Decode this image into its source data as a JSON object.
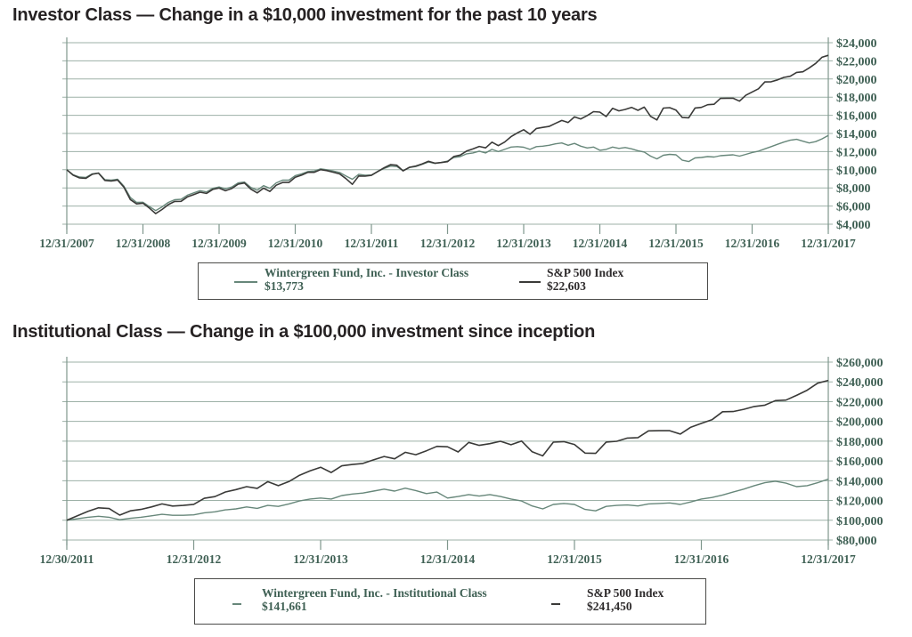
{
  "colors": {
    "fund_line": "#67877a",
    "sp_line": "#3a3a38",
    "grid": "#9db1a7",
    "axis": "#7f978d",
    "axis_text": "#3f6054",
    "title_text": "#262223",
    "legend_border": "#4a4a48"
  },
  "chart_data": [
    {
      "type": "line",
      "title": "Investor Class — Change in a $10,000 investment for the past 10 years",
      "xlabel": "",
      "ylabel": "",
      "ylim": [
        4000,
        24000
      ],
      "ytick_step": 2000,
      "ytick_labels": [
        "$24,000",
        "$22,000",
        "$20,000",
        "$18,000",
        "$16,000",
        "$14,000",
        "$12,000",
        "$10,000",
        "$8,000",
        "$6,000",
        "$4,000"
      ],
      "xtick_labels": [
        "12/31/2007",
        "12/31/2008",
        "12/31/2009",
        "12/31/2010",
        "12/31/2011",
        "12/31/2012",
        "12/31/2013",
        "12/31/2014",
        "12/31/2015",
        "12/31/2016",
        "12/31/2017"
      ],
      "grid": true,
      "legend_position": "bottom-box",
      "sampling": "monthly",
      "series": [
        {
          "name": "Wintergreen Fund, Inc. - Investor Class",
          "value_label": "$13,773",
          "color": "#67877a",
          "values": [
            10000,
            9450,
            9200,
            9150,
            9550,
            9650,
            8900,
            8850,
            8950,
            8200,
            6950,
            6400,
            6420,
            5950,
            5500,
            5900,
            6400,
            6700,
            6750,
            7200,
            7450,
            7700,
            7560,
            7950,
            8100,
            7900,
            8100,
            8550,
            8650,
            8050,
            7750,
            8250,
            7950,
            8550,
            8850,
            8850,
            9350,
            9550,
            9800,
            9850,
            10100,
            10000,
            9850,
            9700,
            9300,
            8950,
            9500,
            9400,
            9420,
            9800,
            10150,
            10400,
            10350,
            9900,
            10250,
            10350,
            10600,
            10850,
            10700,
            10800,
            10950,
            11350,
            11450,
            11750,
            11850,
            12050,
            11850,
            12250,
            12000,
            12250,
            12500,
            12550,
            12480,
            12250,
            12550,
            12600,
            12700,
            12850,
            12950,
            12700,
            12900,
            12600,
            12400,
            12500,
            12150,
            12250,
            12500,
            12350,
            12450,
            12300,
            12100,
            11950,
            11500,
            11200,
            11600,
            11700,
            11650,
            11050,
            10900,
            11300,
            11350,
            11450,
            11400,
            11550,
            11600,
            11650,
            11500,
            11700,
            11900,
            12050,
            12300,
            12550,
            12800,
            13050,
            13250,
            13350,
            13150,
            12950,
            13100,
            13400,
            13773
          ]
        },
        {
          "name": "S&P 500 Index",
          "value_label": "$22,603",
          "color": "#3a3a38",
          "values": [
            10000,
            9400,
            9100,
            9060,
            9500,
            9630,
            8820,
            8750,
            8870,
            8080,
            6720,
            6240,
            6310,
            5780,
            5170,
            5620,
            6160,
            6510,
            6520,
            7010,
            7260,
            7530,
            7390,
            7830,
            7980,
            7690,
            7930,
            8410,
            8540,
            7860,
            7450,
            7970,
            7610,
            8290,
            8600,
            8600,
            9180,
            9400,
            9720,
            9720,
            10010,
            9900,
            9730,
            9540,
            9020,
            8390,
            9310,
            9290,
            9380,
            9800,
            10220,
            10560,
            10500,
            9870,
            10270,
            10410,
            10650,
            10930,
            10730,
            10790,
            10890,
            11460,
            11620,
            12060,
            12290,
            12570,
            12410,
            13040,
            12660,
            13050,
            13650,
            14060,
            14410,
            13910,
            14550,
            14670,
            14770,
            15110,
            15430,
            15210,
            15820,
            15600,
            15970,
            16400,
            16350,
            15860,
            16760,
            16490,
            16650,
            16870,
            16550,
            16900,
            15880,
            15490,
            16790,
            16840,
            16570,
            15750,
            15730,
            16800,
            16870,
            17170,
            17220,
            17860,
            17880,
            17880,
            17560,
            18210,
            18570,
            18920,
            19680,
            19700,
            19900,
            20180,
            20300,
            20730,
            20790,
            21230,
            21720,
            22390,
            22603
          ]
        }
      ]
    },
    {
      "type": "line",
      "title": "Institutional Class — Change in a $100,000 investment since inception",
      "xlabel": "",
      "ylabel": "",
      "ylim": [
        80000,
        260000
      ],
      "ytick_step": 20000,
      "ytick_labels": [
        "$260,000",
        "$240,000",
        "$220,000",
        "$200,000",
        "$180,000",
        "$160,000",
        "$140,000",
        "$120,000",
        "$100,000",
        "$80,000"
      ],
      "xtick_labels": [
        "12/30/2011",
        "12/31/2012",
        "12/31/2013",
        "12/31/2014",
        "12/31/2015",
        "12/31/2016",
        "12/31/2017"
      ],
      "grid": true,
      "legend_position": "bottom-box",
      "sampling": "monthly",
      "series": [
        {
          "name": "Wintergreen Fund, Inc. - Institutional Class",
          "value_label": "$141,661",
          "color": "#67877a",
          "values": [
            100000,
            101500,
            103000,
            104000,
            103000,
            100500,
            102000,
            103000,
            104500,
            106000,
            105000,
            105000,
            105500,
            107500,
            108500,
            110500,
            111500,
            113500,
            112000,
            115000,
            114000,
            116500,
            119500,
            121500,
            122500,
            121500,
            125000,
            126500,
            127500,
            129500,
            131500,
            129500,
            132500,
            130000,
            127000,
            128500,
            122500,
            124000,
            126000,
            124500,
            126000,
            124000,
            121500,
            119500,
            114500,
            111500,
            116000,
            117000,
            116000,
            111000,
            109500,
            114000,
            115000,
            115500,
            114500,
            116500,
            117000,
            117500,
            116000,
            118500,
            121500,
            123000,
            125500,
            128500,
            131500,
            135000,
            138000,
            139500,
            137500,
            134000,
            135000,
            138000,
            141661
          ]
        },
        {
          "name": "S&P 500 Index",
          "value_label": "$241,450",
          "color": "#3a3a38",
          "values": [
            100000,
            104500,
            109000,
            112600,
            111900,
            105200,
            109500,
            111000,
            113500,
            116500,
            114400,
            115000,
            116100,
            122200,
            123900,
            128600,
            131000,
            134000,
            132300,
            139000,
            135000,
            139100,
            145500,
            149900,
            153600,
            148300,
            155100,
            156400,
            157500,
            161100,
            164500,
            162200,
            168700,
            166300,
            170300,
            174800,
            174300,
            169100,
            178700,
            175800,
            177500,
            179900,
            176400,
            180200,
            169300,
            165100,
            179000,
            179500,
            176700,
            167900,
            167700,
            179100,
            179900,
            183100,
            183600,
            190400,
            190600,
            190600,
            187200,
            194100,
            198000,
            201700,
            209800,
            210000,
            212200,
            215100,
            216400,
            221000,
            221600,
            226300,
            231600,
            238700,
            241450
          ]
        }
      ]
    }
  ]
}
